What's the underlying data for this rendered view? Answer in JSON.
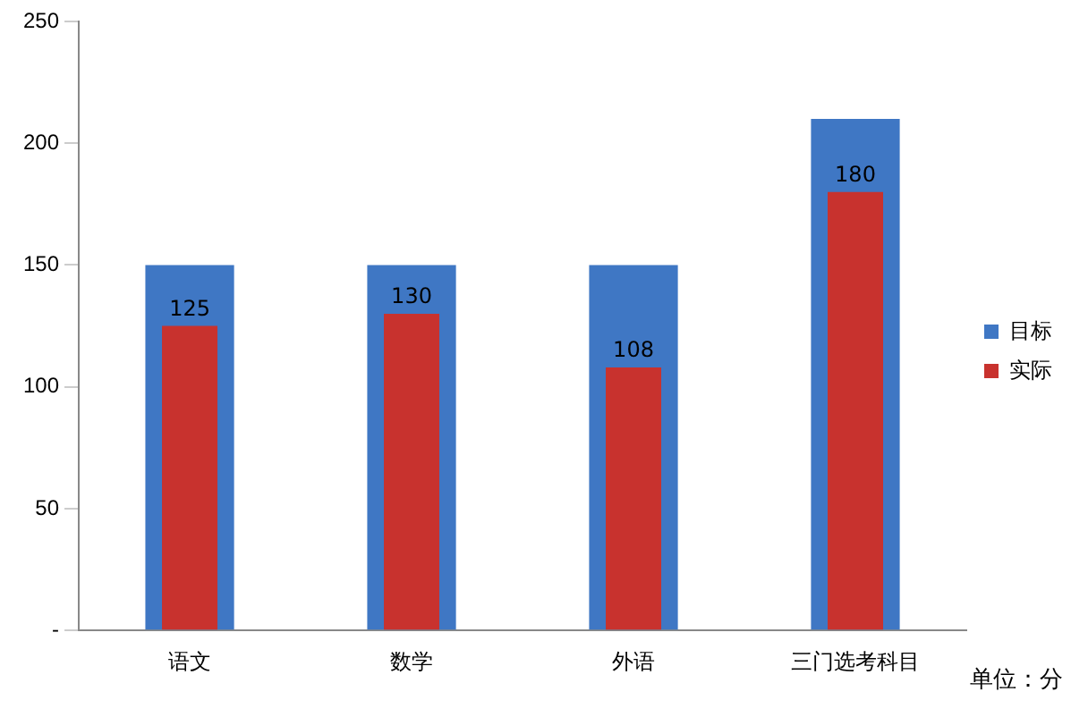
{
  "chart_data": {
    "type": "bar",
    "categories": [
      "语文",
      "数学",
      "外语",
      "三门选考科目"
    ],
    "series": [
      {
        "name": "目标",
        "color": "#3f77c4",
        "values": [
          150,
          150,
          150,
          210
        ]
      },
      {
        "name": "实际",
        "color": "#c8322e",
        "values": [
          125,
          130,
          108,
          180
        ],
        "value_labels": [
          "125",
          "130",
          "108",
          "180"
        ]
      }
    ],
    "ylim": [
      0,
      250
    ],
    "yticks": [
      {
        "value": 0,
        "label": "-"
      },
      50,
      100,
      150,
      200,
      250
    ],
    "legend": "right",
    "annotations": [
      "单位：分"
    ]
  }
}
